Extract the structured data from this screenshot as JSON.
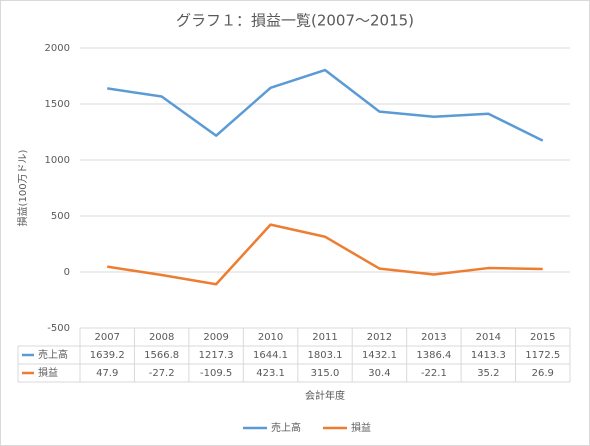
{
  "chart_data": {
    "type": "line",
    "title": "グラフ１：損益一覧(2007～2015)",
    "y_label": "損益(100万ドル)",
    "x_label": "会計年度",
    "categories": [
      "2007",
      "2008",
      "2009",
      "2010",
      "2011",
      "2012",
      "2013",
      "2014",
      "2015"
    ],
    "series": [
      {
        "name": "売上高",
        "color": "#5b9bd5",
        "values": [
          1639.2,
          1566.8,
          1217.3,
          1644.1,
          1803.1,
          1432.1,
          1386.4,
          1413.3,
          1172.5
        ],
        "value_labels": [
          "1639.2",
          "1566.8",
          "1217.3",
          "1644.1",
          "1803.1",
          "1432.1",
          "1386.4",
          "1413.3",
          "1172.5"
        ]
      },
      {
        "name": "損益",
        "color": "#ed7d31",
        "values": [
          47.9,
          -27.2,
          -109.5,
          423.1,
          315.0,
          30.4,
          -22.1,
          35.2,
          26.9
        ],
        "value_labels": [
          "47.9",
          "-27.2",
          "-109.5",
          "423.1",
          "315.0",
          "30.4",
          "-22.1",
          "35.2",
          "26.9"
        ]
      }
    ],
    "ylim": [
      -500,
      2000
    ],
    "yticks": [
      -500,
      0,
      500,
      1000,
      1500,
      2000
    ],
    "grid": true,
    "legend": "bottom"
  }
}
